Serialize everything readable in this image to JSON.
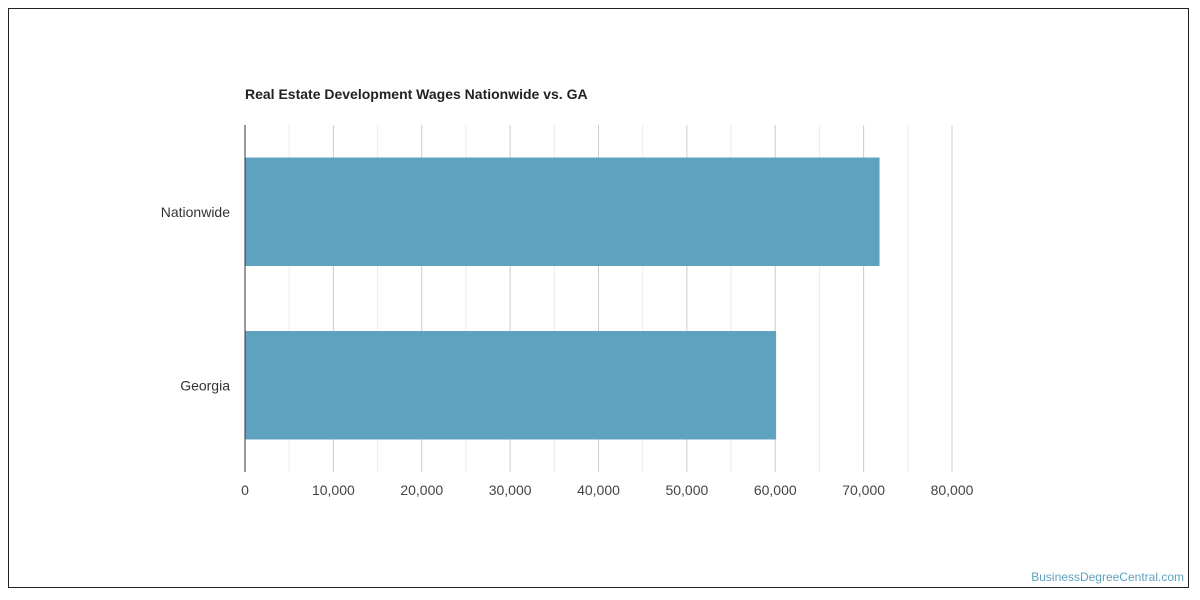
{
  "chart_data": {
    "type": "bar",
    "orientation": "horizontal",
    "title": "Real Estate Development Wages Nationwide vs. GA",
    "categories": [
      "Nationwide",
      "Georgia"
    ],
    "values": [
      71800,
      60100
    ],
    "xlim": [
      0,
      80000
    ],
    "xticks": [
      0,
      10000,
      20000,
      30000,
      40000,
      50000,
      60000,
      70000,
      80000
    ],
    "xtick_labels": [
      "0",
      "10,000",
      "20,000",
      "30,000",
      "40,000",
      "50,000",
      "60,000",
      "70,000",
      "80,000"
    ],
    "grid": true,
    "bar_color": "#5ea2bf"
  },
  "watermark": "BusinessDegreeCentral.com"
}
